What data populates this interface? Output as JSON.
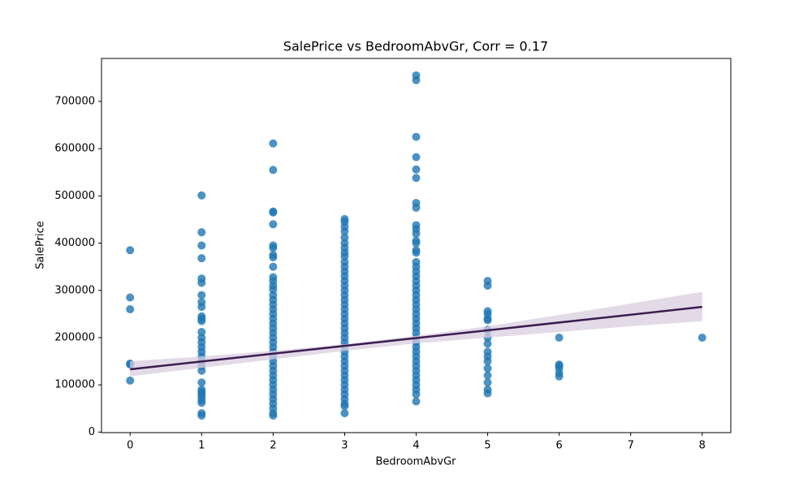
{
  "chart_data": {
    "type": "scatter",
    "title": "SalePrice vs BedroomAbvGr, Corr = 0.17",
    "x_label": "BedroomAbvGr",
    "y_label": "SalePrice",
    "xlim": [
      -0.4,
      8.4
    ],
    "ylim": [
      -1105,
      791005
    ],
    "xticks": [
      0,
      1,
      2,
      3,
      4,
      5,
      6,
      7,
      8
    ],
    "yticks": [
      0,
      100000,
      200000,
      300000,
      400000,
      500000,
      600000,
      700000
    ],
    "color": "#1f77b4",
    "line_color": "#3b1c50",
    "band_color": "#d9cde0",
    "groups": [
      {
        "x": 0,
        "y": [
          385000,
          285000,
          260000,
          145000,
          143000,
          109000
        ]
      },
      {
        "x": 1,
        "y": [
          501000,
          423000,
          395000,
          368000,
          325000,
          316000,
          290000,
          275000,
          265000,
          245000,
          240000,
          235000,
          212000,
          200000,
          190000,
          180000,
          170000,
          160000,
          150000,
          140000,
          130000,
          105000,
          90000,
          85000,
          80000,
          75000,
          68000,
          62000,
          40000,
          35000
        ]
      },
      {
        "x": 2,
        "y": [
          611000,
          555000,
          467000,
          465000,
          440000,
          395000,
          390000,
          375000,
          370000,
          350000,
          328000,
          320000,
          310000,
          302000,
          290000,
          280000,
          270000,
          260000,
          250000,
          240000,
          230000,
          220000,
          210000,
          200000,
          190000,
          180000,
          170000,
          160000,
          150000,
          140000,
          130000,
          120000,
          110000,
          100000,
          90000,
          80000,
          70000,
          60000,
          50000,
          40000,
          35000
        ]
      },
      {
        "x": 3,
        "y": [
          451000,
          445000,
          435000,
          425000,
          412000,
          400000,
          390000,
          380000,
          372000,
          360000,
          350000,
          340000,
          330000,
          320000,
          310000,
          300000,
          290000,
          280000,
          270000,
          260000,
          250000,
          240000,
          230000,
          220000,
          210000,
          200000,
          190000,
          180000,
          170000,
          160000,
          150000,
          140000,
          130000,
          120000,
          110000,
          100000,
          90000,
          80000,
          70000,
          60000,
          55000,
          40000
        ]
      },
      {
        "x": 4,
        "y": [
          755000,
          745000,
          625000,
          582000,
          556000,
          538000,
          485000,
          475000,
          438000,
          430000,
          420000,
          405000,
          400000,
          385000,
          380000,
          360000,
          350000,
          340000,
          330000,
          320000,
          310000,
          300000,
          290000,
          280000,
          270000,
          260000,
          250000,
          240000,
          230000,
          220000,
          210000,
          200000,
          190000,
          180000,
          170000,
          160000,
          150000,
          140000,
          130000,
          120000,
          110000,
          100000,
          90000,
          80000,
          65000
        ]
      },
      {
        "x": 5,
        "y": [
          320000,
          310000,
          256000,
          250000,
          240000,
          237000,
          217000,
          215000,
          200000,
          187000,
          170000,
          160000,
          150000,
          135000,
          120000,
          105000,
          90000,
          82000
        ]
      },
      {
        "x": 6,
        "y": [
          200000,
          143000,
          140000,
          135000,
          125000,
          118000
        ]
      },
      {
        "x": 8,
        "y": [
          200000
        ]
      }
    ],
    "regression": {
      "x": [
        0,
        8
      ],
      "y": [
        133000,
        265000
      ]
    },
    "ci": {
      "x": [
        0,
        1,
        2,
        3,
        4,
        5,
        6,
        7,
        8
      ],
      "lower": [
        118000,
        136000,
        154000,
        172000,
        188000,
        200000,
        212000,
        224000,
        235000
      ],
      "upper": [
        150000,
        160000,
        172000,
        186000,
        204000,
        224000,
        248000,
        272000,
        297000
      ]
    }
  }
}
